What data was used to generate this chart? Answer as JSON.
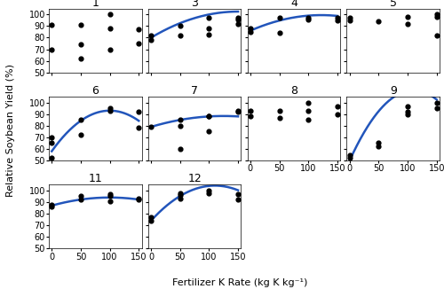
{
  "panels": [
    {
      "id": "1",
      "has_curve": false,
      "points_x": [
        0,
        0,
        50,
        50,
        50,
        100,
        100,
        100,
        150,
        150
      ],
      "points_y": [
        91,
        70,
        91,
        74,
        62,
        100,
        88,
        70,
        75,
        87
      ]
    },
    {
      "id": "3",
      "has_curve": true,
      "points_x": [
        0,
        0,
        50,
        50,
        100,
        100,
        100,
        150,
        150,
        150
      ],
      "points_y": [
        82,
        78,
        90,
        82,
        97,
        88,
        83,
        97,
        96,
        92
      ],
      "curve_params": [
        80.0,
        0.3,
        -0.001
      ]
    },
    {
      "id": "4",
      "has_curve": true,
      "points_x": [
        0,
        0,
        50,
        50,
        100,
        100,
        150,
        150
      ],
      "points_y": [
        88,
        85,
        97,
        84,
        97,
        96,
        97,
        95
      ],
      "curve_params": [
        86.0,
        0.22,
        -0.0009
      ]
    },
    {
      "id": "5",
      "has_curve": false,
      "points_x": [
        0,
        0,
        50,
        100,
        100,
        150,
        150,
        150
      ],
      "points_y": [
        97,
        95,
        94,
        98,
        92,
        100,
        98,
        82
      ]
    },
    {
      "id": "6",
      "has_curve": true,
      "points_x": [
        0,
        0,
        0,
        50,
        50,
        100,
        100,
        150,
        150
      ],
      "points_y": [
        65,
        70,
        52,
        85,
        72,
        95,
        93,
        92,
        78
      ],
      "curve_params": [
        58.0,
        0.7,
        -0.0035
      ]
    },
    {
      "id": "7",
      "has_curve": true,
      "points_x": [
        0,
        50,
        50,
        50,
        100,
        100,
        100,
        150,
        150
      ],
      "points_y": [
        79,
        85,
        80,
        60,
        88,
        88,
        75,
        93,
        92
      ],
      "curve_params": [
        79.0,
        0.15,
        -0.0006
      ]
    },
    {
      "id": "8",
      "has_curve": false,
      "points_x": [
        0,
        0,
        50,
        50,
        100,
        100,
        100,
        150,
        150
      ],
      "points_y": [
        93,
        88,
        93,
        87,
        100,
        93,
        85,
        97,
        90
      ]
    },
    {
      "id": "9",
      "has_curve": true,
      "points_x": [
        0,
        0,
        50,
        50,
        100,
        100,
        100,
        150,
        150
      ],
      "points_y": [
        55,
        52,
        65,
        62,
        97,
        92,
        90,
        100,
        95
      ],
      "curve_params": [
        50.0,
        1.1,
        -0.005
      ]
    },
    {
      "id": "11",
      "has_curve": true,
      "points_x": [
        0,
        0,
        50,
        50,
        100,
        100,
        100,
        150,
        150
      ],
      "points_y": [
        88,
        86,
        95,
        92,
        97,
        95,
        91,
        93,
        92
      ],
      "curve_params": [
        87.0,
        0.14,
        -0.0007
      ]
    },
    {
      "id": "12",
      "has_curve": true,
      "points_x": [
        0,
        0,
        50,
        50,
        50,
        100,
        100,
        150,
        150
      ],
      "points_y": [
        77,
        74,
        98,
        96,
        93,
        100,
        98,
        97,
        92
      ],
      "curve_params": [
        74.0,
        0.55,
        -0.0025
      ]
    }
  ],
  "ylim": [
    50,
    105
  ],
  "xlim": [
    -5,
    155
  ],
  "yticks": [
    50,
    60,
    70,
    80,
    90,
    100
  ],
  "xticks": [
    0,
    50,
    100,
    150
  ],
  "curve_color": "#2255bb",
  "point_color": "black",
  "point_size": 12,
  "ylabel": "Relative Soybean Yield (%)",
  "xlabel": "Fertilizer K Rate (kg K kg⁻¹)",
  "title_fontsize": 9,
  "label_fontsize": 8,
  "tick_fontsize": 7,
  "curve_linewidth": 1.8
}
